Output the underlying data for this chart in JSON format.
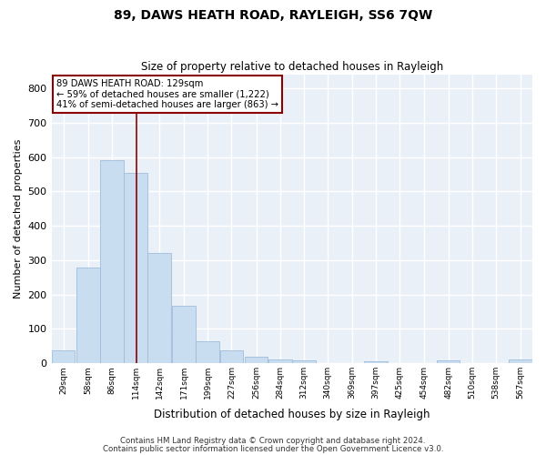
{
  "title": "89, DAWS HEATH ROAD, RAYLEIGH, SS6 7QW",
  "subtitle": "Size of property relative to detached houses in Rayleigh",
  "xlabel": "Distribution of detached houses by size in Rayleigh",
  "ylabel": "Number of detached properties",
  "property_size": 129,
  "property_line_color": "#8b0000",
  "bar_color": "#c9ddf0",
  "bar_edge_color": "#a0bbda",
  "background_color": "#eaf0f8",
  "grid_color": "#ffffff",
  "bins_left": [
    29,
    58,
    86,
    114,
    142,
    171,
    199,
    227,
    256,
    284,
    312,
    340,
    369,
    397,
    425,
    454,
    482,
    510,
    538,
    567
  ],
  "bin_width": 28,
  "values": [
    38,
    278,
    592,
    555,
    320,
    168,
    65,
    38,
    20,
    10,
    8,
    0,
    0,
    5,
    0,
    0,
    8,
    0,
    0,
    10
  ],
  "ylim": [
    0,
    840
  ],
  "yticks": [
    0,
    100,
    200,
    300,
    400,
    500,
    600,
    700,
    800
  ],
  "annotation_text": "89 DAWS HEATH ROAD: 129sqm\n← 59% of detached houses are smaller (1,222)\n41% of semi-detached houses are larger (863) →",
  "annotation_box_color": "#ffffff",
  "annotation_border_color": "#8b0000",
  "footer_line1": "Contains HM Land Registry data © Crown copyright and database right 2024.",
  "footer_line2": "Contains public sector information licensed under the Open Government Licence v3.0.",
  "fig_width": 6.0,
  "fig_height": 5.0,
  "dpi": 100
}
